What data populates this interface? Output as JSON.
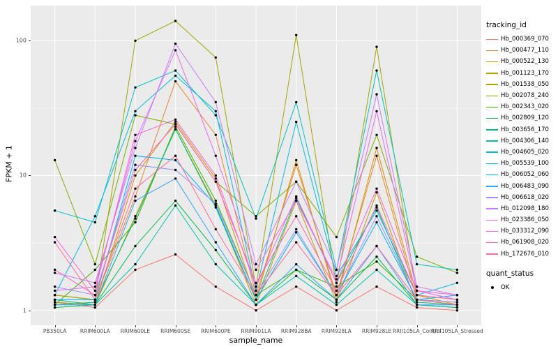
{
  "chart_data": {
    "type": "line",
    "title": "",
    "xlabel": "sample_name",
    "ylabel": "FPKM + 1",
    "y_scale": "log10",
    "y_ticks": [
      1,
      10,
      100
    ],
    "y_minor": [
      3.1623,
      31.623
    ],
    "ylim": [
      0.776,
      182
    ],
    "panel_bg": "#EBEBEB",
    "grid_color": "#FFFFFF",
    "point_color": "#000000",
    "categories": [
      "PB350LA",
      "RRIM600LA",
      "RRIM600LE",
      "RRIM600SE",
      "RRIM600PE",
      "RRIM901LA",
      "RRIM928BA",
      "RRIM928LA",
      "RRIM928LE",
      "RRII105LA_Control",
      "RRII105LA_Stressed"
    ],
    "series": [
      {
        "name": "Hb_000369_070",
        "color": "#F8766D",
        "values": [
          1.15,
          1.05,
          2.0,
          2.6,
          1.5,
          1.0,
          1.5,
          1.0,
          1.5,
          1.05,
          1.0
        ]
      },
      {
        "name": "Hb_000477_110",
        "color": "#EA8331",
        "values": [
          1.3,
          1.2,
          7,
          50,
          20,
          1.3,
          12,
          1.3,
          14,
          1.2,
          1.15
        ]
      },
      {
        "name": "Hb_000522_130",
        "color": "#D89000",
        "values": [
          1.2,
          1.1,
          10,
          25,
          9.5,
          1.2,
          13,
          1.2,
          16,
          1.3,
          1.1
        ]
      },
      {
        "name": "Hb_001123_170",
        "color": "#C09B00",
        "values": [
          1.15,
          1.1,
          5,
          22,
          6,
          1.1,
          6.5,
          1.15,
          7.5,
          1.1,
          1.05
        ]
      },
      {
        "name": "Hb_001538_050",
        "color": "#A3A500",
        "values": [
          1.3,
          1.2,
          100,
          140,
          75,
          1.5,
          110,
          1.5,
          90,
          1.3,
          1.2
        ]
      },
      {
        "name": "Hb_002078_240",
        "color": "#7CAE00",
        "values": [
          13,
          2.2,
          28,
          24,
          9,
          5,
          9,
          3.5,
          20,
          2.5,
          1.9
        ]
      },
      {
        "name": "Hb_002343_020",
        "color": "#39B600",
        "values": [
          1.1,
          2.0,
          4.5,
          23,
          6.5,
          1.3,
          2.0,
          1.5,
          2.3,
          1.2,
          1.1
        ]
      },
      {
        "name": "Hb_002809_120",
        "color": "#00BB4E",
        "values": [
          1.05,
          1.1,
          3.0,
          6.5,
          2.8,
          1.1,
          2.0,
          1.2,
          2.5,
          1.1,
          1.05
        ]
      },
      {
        "name": "Hb_003656_170",
        "color": "#00BF7D",
        "values": [
          1.1,
          1.15,
          4.8,
          22,
          5.8,
          1.2,
          6.8,
          1.6,
          5.8,
          1.15,
          1.1
        ]
      },
      {
        "name": "Hb_004306_140",
        "color": "#00C1A3",
        "values": [
          1.2,
          1.1,
          2.2,
          6.0,
          2.2,
          1.1,
          1.8,
          1.1,
          2.0,
          1.1,
          1.05
        ]
      },
      {
        "name": "Hb_004605_020",
        "color": "#00BFC4",
        "values": [
          5.5,
          4.5,
          45,
          60,
          28,
          4.8,
          35,
          2.0,
          60,
          2.2,
          2.0
        ]
      },
      {
        "name": "Hb_005539_100",
        "color": "#00BAE0",
        "values": [
          1.3,
          5.0,
          30,
          55,
          30,
          1.4,
          25,
          1.8,
          5.5,
          1.3,
          1.6
        ]
      },
      {
        "name": "Hb_006052_060",
        "color": "#00B0F6",
        "values": [
          1.2,
          1.2,
          14,
          13,
          6,
          1.2,
          3.8,
          1.3,
          4.5,
          1.2,
          1.3
        ]
      },
      {
        "name": "Hb_006483_090",
        "color": "#35A2FF",
        "values": [
          1.1,
          1.1,
          6.5,
          9.5,
          3.2,
          1.1,
          2.2,
          1.2,
          3.0,
          1.1,
          1.1
        ]
      },
      {
        "name": "Hb_006618_020",
        "color": "#9590FF",
        "values": [
          1.5,
          1.3,
          12,
          11,
          6.2,
          1.3,
          4.0,
          1.3,
          5.0,
          1.2,
          1.15
        ]
      },
      {
        "name": "Hb_012098_180",
        "color": "#C77CFF",
        "values": [
          1.9,
          1.6,
          16,
          95,
          35,
          2.2,
          9,
          2.0,
          40,
          1.5,
          1.3
        ]
      },
      {
        "name": "Hb_023386_050",
        "color": "#E76BF3",
        "values": [
          1.4,
          1.5,
          18,
          85,
          14,
          2.0,
          6.5,
          1.7,
          30,
          1.4,
          1.2
        ]
      },
      {
        "name": "Hb_033312_090",
        "color": "#FA62DB",
        "values": [
          3.5,
          1.4,
          20,
          26,
          10,
          1.5,
          7,
          1.6,
          8,
          1.4,
          1.3
        ]
      },
      {
        "name": "Hb_061908_020",
        "color": "#FF62BC",
        "values": [
          2.0,
          1.3,
          11,
          24,
          9,
          1.6,
          5,
          1.4,
          6,
          1.3,
          1.2
        ]
      },
      {
        "name": "Hb_172676_010",
        "color": "#FF6A98",
        "values": [
          3.2,
          1.2,
          8,
          14,
          4,
          1.3,
          3.2,
          1.3,
          3.0,
          1.2,
          1.1
        ]
      }
    ],
    "legend": {
      "title": "tracking_id",
      "position": "right"
    },
    "legend2": {
      "title": "quant_status",
      "items": [
        {
          "label": "OK"
        }
      ]
    }
  }
}
